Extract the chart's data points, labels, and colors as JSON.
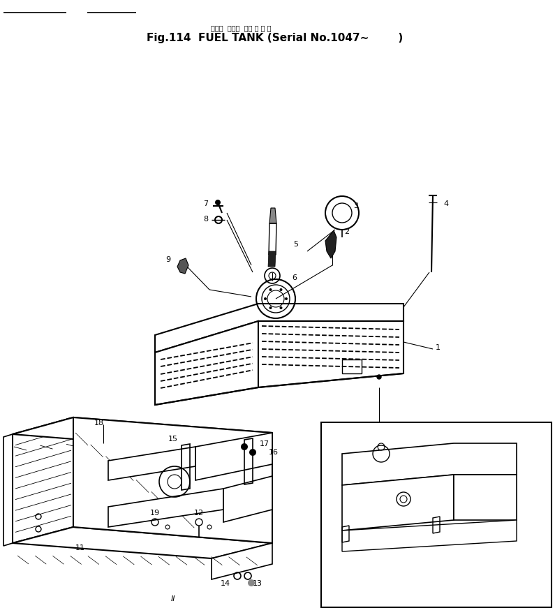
{
  "title_japanese": "フエル  タンク  （適 用 号 機",
  "title_line1": "Fig.114  FUEL TANK (Serial No.1047∼        )",
  "bg_color": "#ffffff",
  "fg_color": "#000000",
  "fig_width": 7.95,
  "fig_height": 8.71,
  "dpi": 100
}
